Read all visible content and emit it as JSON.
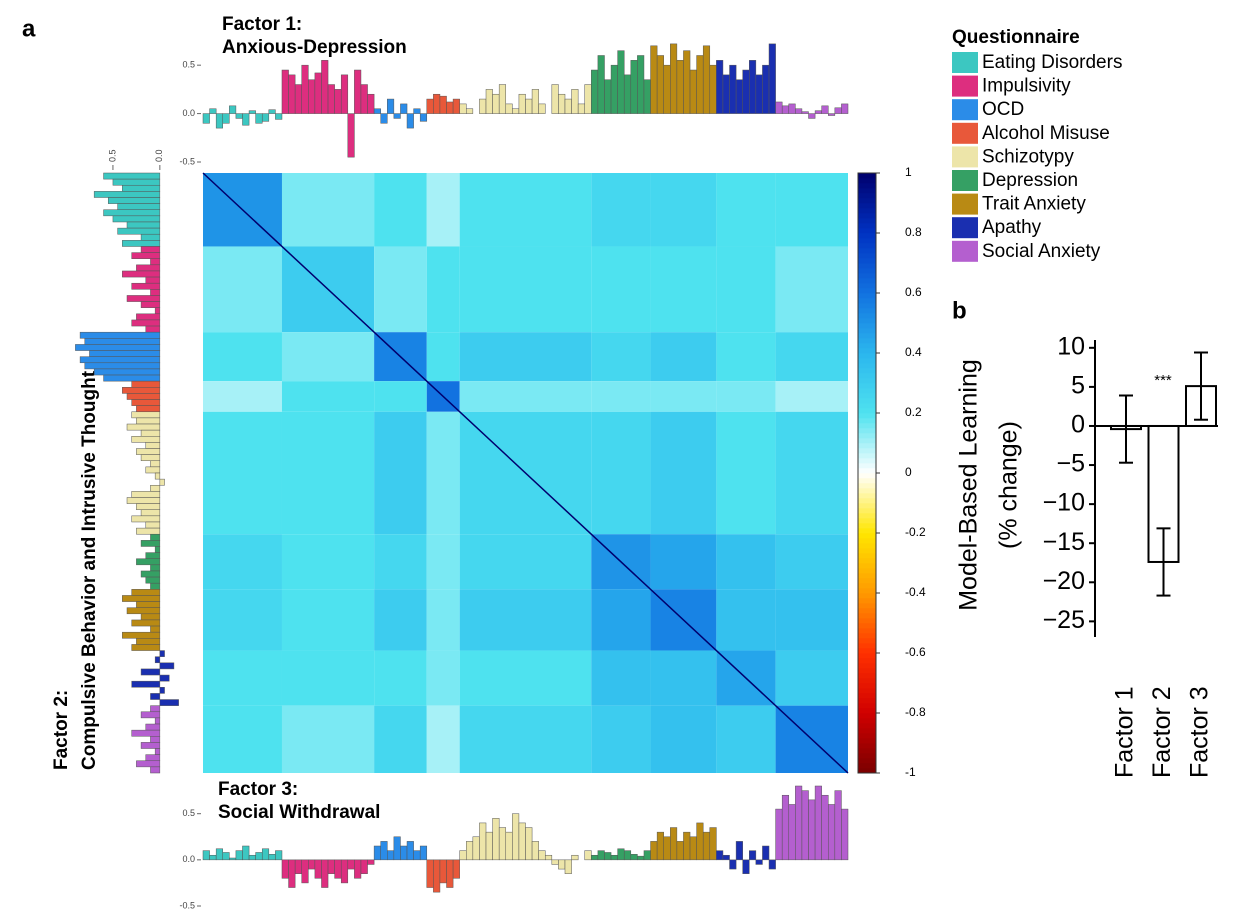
{
  "panel_labels": [
    "a",
    "b"
  ],
  "chart_data": [
    {
      "type": "bar",
      "orientation": "vertical",
      "title": "Factor 1:",
      "subtitle": "Anxious-Depression",
      "legend_title": "Questionnaire",
      "ylim": [
        -0.5,
        0.76
      ],
      "yticks": [
        -0.5,
        {
          "value": 0,
          "label": "0.0"
        },
        0.5
      ],
      "series": [
        {
          "name": "Eating Disorders",
          "color": "#3cc7c1",
          "values": [
            -0.1,
            0.05,
            -0.15,
            -0.1,
            0.08,
            -0.05,
            -0.12,
            0.03,
            -0.1,
            -0.08,
            0.04,
            -0.06
          ]
        },
        {
          "name": "Impulsivity",
          "color": "#dd2e7f",
          "values": [
            0.45,
            0.4,
            0.3,
            0.5,
            0.35,
            0.42,
            0.55,
            0.3,
            0.25,
            0.4,
            -0.45,
            0.45,
            0.3,
            0.2
          ]
        },
        {
          "name": "OCD",
          "color": "#2b8ce8",
          "values": [
            0.05,
            -0.1,
            0.15,
            -0.05,
            0.1,
            -0.15,
            0.05,
            -0.08
          ]
        },
        {
          "name": "Alcohol Misuse",
          "color": "#e8583a",
          "values": [
            0.15,
            0.2,
            0.18,
            0.12,
            0.15
          ]
        },
        {
          "name": "Schizotypy",
          "color": "#ede5a9",
          "values": [
            0.1,
            0.05,
            0.0,
            0.15,
            0.25,
            0.2,
            0.3,
            0.1,
            0.05,
            0.2,
            0.15,
            0.25,
            0.1,
            0.0,
            0.3,
            0.2,
            0.15,
            0.25,
            0.1,
            0.3
          ]
        },
        {
          "name": "Depression",
          "color": "#35a064",
          "values": [
            0.45,
            0.6,
            0.35,
            0.5,
            0.65,
            0.4,
            0.55,
            0.6,
            0.35
          ]
        },
        {
          "name": "Trait Anxiety",
          "color": "#b98a14",
          "values": [
            0.7,
            0.6,
            0.5,
            0.72,
            0.55,
            0.65,
            0.45,
            0.6,
            0.7,
            0.5
          ]
        },
        {
          "name": "Apathy",
          "color": "#1a2fb0",
          "values": [
            0.55,
            0.4,
            0.5,
            0.35,
            0.45,
            0.55,
            0.4,
            0.5,
            0.72
          ]
        },
        {
          "name": "Social Anxiety",
          "color": "#b45fcf",
          "values": [
            0.12,
            0.08,
            0.1,
            0.05,
            0.02,
            -0.05,
            0.03,
            0.08,
            -0.02,
            0.06,
            0.1
          ]
        }
      ]
    },
    {
      "type": "bar",
      "orientation": "horizontal",
      "title": "Factor 2:",
      "subtitle": "Compulsive Behavior and Intrusive Thought",
      "xlim": [
        0.9,
        -0.3
      ],
      "xticks": [
        {
          "value": 0,
          "label": "0.0"
        },
        0.5
      ],
      "series": [
        {
          "color": "#3cc7c1",
          "values": [
            0.6,
            0.5,
            0.4,
            0.7,
            0.55,
            0.45,
            0.6,
            0.5,
            0.35,
            0.45,
            0.2,
            0.4
          ]
        },
        {
          "color": "#dd2e7f",
          "values": [
            0.2,
            0.3,
            0.1,
            0.25,
            0.4,
            0.15,
            0.3,
            0.1,
            0.35,
            0.2,
            0.05,
            0.25,
            0.3,
            0.15
          ]
        },
        {
          "color": "#2b8ce8",
          "values": [
            0.85,
            0.8,
            0.9,
            0.75,
            0.85,
            0.8,
            0.7,
            0.6
          ]
        },
        {
          "color": "#e8583a",
          "values": [
            0.3,
            0.4,
            0.35,
            0.3,
            0.25
          ]
        },
        {
          "color": "#ede5a9",
          "values": [
            0.3,
            0.25,
            0.35,
            0.2,
            0.3,
            0.15,
            0.25,
            0.2,
            0.1,
            0.15,
            0.05,
            -0.05,
            0.1,
            0.3,
            0.35,
            0.25,
            0.2,
            0.3,
            0.15,
            0.25
          ]
        },
        {
          "color": "#35a064",
          "values": [
            0.1,
            0.2,
            0.05,
            0.15,
            0.25,
            0.1,
            0.2,
            0.15,
            0.1
          ]
        },
        {
          "color": "#b98a14",
          "values": [
            0.3,
            0.4,
            0.25,
            0.35,
            0.2,
            0.3,
            0.1,
            0.4,
            0.25,
            0.3
          ]
        },
        {
          "color": "#1a2fb0",
          "values": [
            -0.05,
            0.05,
            -0.15,
            0.2,
            -0.1,
            0.3,
            -0.05,
            0.1,
            -0.2
          ]
        },
        {
          "color": "#b45fcf",
          "values": [
            0.1,
            0.2,
            0.05,
            0.15,
            0.3,
            0.1,
            0.2,
            0.05,
            0.15,
            0.25,
            0.1
          ]
        }
      ]
    },
    {
      "type": "bar",
      "orientation": "vertical",
      "title": "Factor 3:",
      "subtitle": "Social Withdrawal",
      "ylim": [
        -0.5,
        0.8
      ],
      "yticks": [
        -0.5,
        {
          "value": 0,
          "label": "0.0"
        },
        0.5
      ],
      "series": [
        {
          "color": "#3cc7c1",
          "values": [
            0.1,
            0.05,
            0.12,
            0.08,
            0.02,
            0.1,
            0.15,
            0.05,
            0.08,
            0.12,
            0.06,
            0.1
          ]
        },
        {
          "color": "#dd2e7f",
          "values": [
            -0.2,
            -0.3,
            -0.15,
            -0.25,
            -0.1,
            -0.2,
            -0.3,
            -0.15,
            -0.2,
            -0.25,
            -0.1,
            -0.2,
            -0.15,
            -0.05
          ]
        },
        {
          "color": "#2b8ce8",
          "values": [
            0.15,
            0.2,
            0.1,
            0.25,
            0.15,
            0.2,
            0.1,
            0.15
          ]
        },
        {
          "color": "#e8583a",
          "values": [
            -0.3,
            -0.35,
            -0.25,
            -0.3,
            -0.2
          ]
        },
        {
          "color": "#ede5a9",
          "values": [
            0.1,
            0.2,
            0.25,
            0.4,
            0.3,
            0.45,
            0.35,
            0.3,
            0.5,
            0.4,
            0.35,
            0.2,
            0.1,
            0.05,
            -0.05,
            -0.1,
            -0.15,
            0.05,
            0.0,
            0.1
          ]
        },
        {
          "color": "#35a064",
          "values": [
            0.05,
            0.1,
            0.08,
            0.05,
            0.12,
            0.1,
            0.06,
            0.04,
            0.1
          ]
        },
        {
          "color": "#b98a14",
          "values": [
            0.2,
            0.3,
            0.25,
            0.35,
            0.2,
            0.3,
            0.25,
            0.4,
            0.3,
            0.35
          ]
        },
        {
          "color": "#1a2fb0",
          "values": [
            0.1,
            0.05,
            -0.1,
            0.2,
            -0.15,
            0.1,
            -0.05,
            0.15,
            -0.1
          ]
        },
        {
          "color": "#b45fcf",
          "values": [
            0.55,
            0.7,
            0.6,
            0.8,
            0.75,
            0.65,
            0.8,
            0.7,
            0.6,
            0.75,
            0.55
          ]
        }
      ]
    },
    {
      "type": "heatmap",
      "zlim": [
        -1,
        1
      ],
      "zticks": [
        1,
        0.8,
        0.6,
        0.4,
        0.2,
        0,
        -0.2,
        -0.4,
        -0.6,
        -0.8,
        -1
      ],
      "colorscale": [
        [
          -1,
          "#7a0000"
        ],
        [
          -0.8,
          "#d00000"
        ],
        [
          -0.6,
          "#ff3000"
        ],
        [
          -0.4,
          "#ff9900"
        ],
        [
          -0.2,
          "#ffe600"
        ],
        [
          0,
          "#ffffff"
        ],
        [
          0.2,
          "#4ee2ef"
        ],
        [
          0.4,
          "#2bb6ee"
        ],
        [
          0.6,
          "#1272e0"
        ],
        [
          0.8,
          "#0032c2"
        ],
        [
          1,
          "#00006e"
        ]
      ],
      "values": [
        [
          0.5,
          0.15,
          0.2,
          0.1,
          0.2,
          0.25,
          0.25,
          0.2,
          0.2
        ],
        [
          0.15,
          0.3,
          0.15,
          0.2,
          0.2,
          0.2,
          0.2,
          0.2,
          0.15
        ],
        [
          0.2,
          0.15,
          0.55,
          0.2,
          0.3,
          0.25,
          0.3,
          0.2,
          0.25
        ],
        [
          0.1,
          0.2,
          0.2,
          0.6,
          0.15,
          0.15,
          0.15,
          0.15,
          0.1
        ],
        [
          0.2,
          0.2,
          0.3,
          0.15,
          0.25,
          0.25,
          0.3,
          0.2,
          0.25
        ],
        [
          0.25,
          0.2,
          0.25,
          0.15,
          0.25,
          0.5,
          0.45,
          0.35,
          0.3
        ],
        [
          0.25,
          0.2,
          0.3,
          0.15,
          0.3,
          0.45,
          0.55,
          0.35,
          0.35
        ],
        [
          0.2,
          0.2,
          0.2,
          0.15,
          0.2,
          0.35,
          0.35,
          0.45,
          0.3
        ],
        [
          0.2,
          0.15,
          0.25,
          0.1,
          0.25,
          0.3,
          0.35,
          0.3,
          0.55
        ]
      ]
    },
    {
      "type": "bar",
      "orientation": "vertical",
      "ylabel": [
        "Model-Based Learning",
        "(% change)"
      ],
      "categories": [
        "Factor 1",
        "Factor 2",
        "Factor 3"
      ],
      "values": [
        -0.4,
        -17.4,
        5.1
      ],
      "errors": [
        4.3,
        4.3,
        4.3
      ],
      "annotation": "***",
      "ylim": [
        -27,
        11
      ],
      "yticks": [
        10,
        5,
        0,
        {
          "value": -5,
          "label": "−5"
        },
        {
          "value": -10,
          "label": "−10"
        },
        {
          "value": -15,
          "label": "−15"
        },
        {
          "value": -20,
          "label": "−20"
        },
        {
          "value": -25,
          "label": "−25"
        }
      ]
    }
  ]
}
